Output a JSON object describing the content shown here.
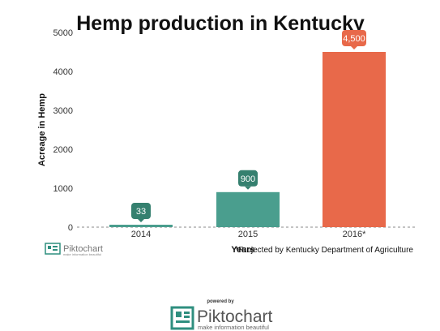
{
  "chart_data": {
    "type": "bar",
    "title": "Hemp production in Kentucky",
    "xlabel": "Years",
    "ylabel": "Acreage in Hemp",
    "categories": [
      "2014",
      "2015",
      "2016*"
    ],
    "values": [
      33,
      900,
      4500
    ],
    "data_labels": [
      "33",
      "900",
      "4,500"
    ],
    "bar_colors": [
      "#4a9e8e",
      "#4a9e8e",
      "#e8694a"
    ],
    "label_bubble_colors": [
      "#35806f",
      "#35806f",
      "#e8694a"
    ],
    "ylim": [
      0,
      5000
    ],
    "yticks": [
      "0",
      "1000",
      "2000",
      "3000",
      "4000",
      "5000"
    ],
    "grid": false,
    "legend": "none"
  },
  "footnote": "*Projected by Kentucky Department of Agriculture",
  "branding": {
    "small_logo_text": "Piktochart",
    "small_logo_tagline": "make information beautiful",
    "powered_by": "powered by",
    "logo_text": "Piktochart",
    "logo_tagline": "make information beautiful",
    "logo_color": "#2f8f7f"
  }
}
